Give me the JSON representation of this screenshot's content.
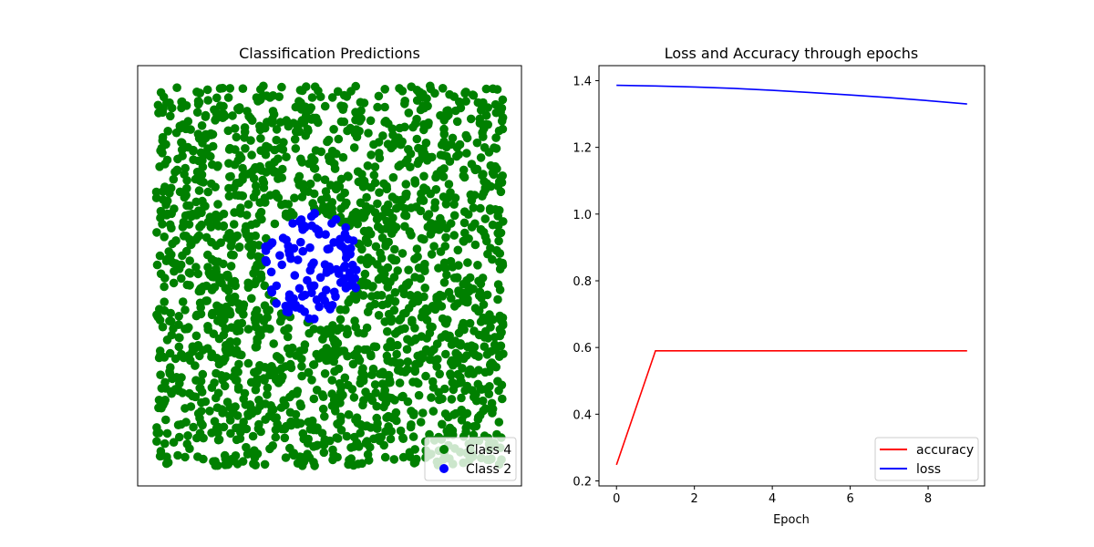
{
  "chart_data": [
    {
      "type": "scatter",
      "title": "Classification Predictions",
      "xlabel": "",
      "ylabel": "",
      "axes_visible": false,
      "legend": {
        "placement": "lower-right",
        "entries": [
          "Class 4",
          "Class 2"
        ]
      },
      "xlim": [
        -1.05,
        1.05
      ],
      "ylim": [
        -1.05,
        1.05
      ],
      "points_total": 2000,
      "series": [
        {
          "name": "Class 4",
          "color": "#008000",
          "region": "outside circle",
          "count": 1795
        },
        {
          "name": "Class 2",
          "color": "#0000ff",
          "region": "inside circle centered (-0.1, 0.05), radius 0.27",
          "count": 205
        }
      ]
    },
    {
      "type": "line",
      "title": "Loss and Accuracy through epochs",
      "xlabel": "Epoch",
      "ylabel": "",
      "xlim": [
        -0.45,
        9.45
      ],
      "ylim": [
        0.185,
        1.445
      ],
      "xticks": [
        0,
        2,
        4,
        6,
        8
      ],
      "xtick_labels": [
        "0",
        "2",
        "4",
        "6",
        "8"
      ],
      "yticks": [
        0.2,
        0.4,
        0.6,
        0.8,
        1.0,
        1.2,
        1.4
      ],
      "ytick_labels": [
        "0.2",
        "0.4",
        "0.6",
        "0.8",
        "1.0",
        "1.2",
        "1.4"
      ],
      "legend": {
        "placement": "lower-right"
      },
      "x": [
        0,
        1,
        2,
        3,
        4,
        5,
        6,
        7,
        8,
        9
      ],
      "series": [
        {
          "name": "accuracy",
          "color": "#ff0000",
          "values": [
            0.248,
            0.59,
            0.59,
            0.59,
            0.59,
            0.59,
            0.59,
            0.59,
            0.59,
            0.59
          ]
        },
        {
          "name": "loss",
          "color": "#0000ff",
          "values": [
            1.386,
            1.384,
            1.381,
            1.377,
            1.371,
            1.364,
            1.357,
            1.349,
            1.34,
            1.33
          ]
        }
      ]
    }
  ]
}
